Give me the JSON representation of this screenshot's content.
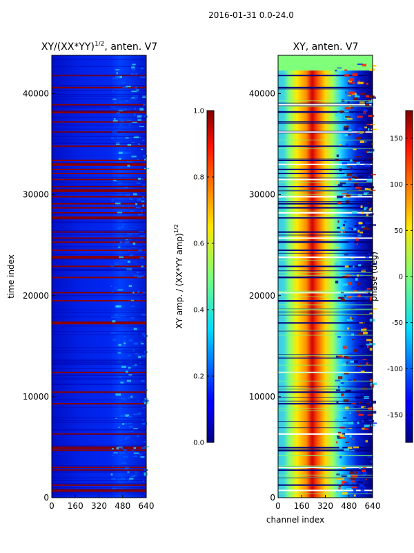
{
  "suptitle": "2016-01-31 0.0-24.0",
  "chart_data": [
    {
      "type": "heatmap",
      "title_base": "XY/(XX*YY)",
      "title_sup": "1/2",
      "title_tail": ", anten. V7",
      "xlabel": "",
      "ylabel": "time index",
      "xlim": [
        0,
        640
      ],
      "ylim": [
        0,
        43800
      ],
      "xticks": [
        "0",
        "160",
        "320",
        "480",
        "640"
      ],
      "yticks": [
        "0",
        "10000",
        "20000",
        "30000",
        "40000"
      ],
      "colorbar": {
        "label_base": "XY amp. / (XX*YY amp)",
        "label_sup": "1/2",
        "range": [
          0.0,
          1.0
        ],
        "ticks": [
          "0.0",
          "0.2",
          "0.4",
          "0.6",
          "0.8",
          "1.0"
        ],
        "colormap": "jet"
      },
      "flagged_rows_time_index": [
        720,
        1250,
        2730,
        3000,
        4700,
        4950,
        6300,
        9300,
        10450,
        12400,
        17300,
        19500,
        20300,
        21800,
        22900,
        23800,
        24500,
        25300,
        25700,
        26300,
        27700,
        28200,
        28700,
        29100,
        29800,
        30400,
        30800,
        31500,
        32100,
        32500,
        33000,
        33400,
        34800,
        36200,
        37200,
        38200,
        38900,
        40600,
        41800
      ]
    },
    {
      "type": "heatmap",
      "title": "XY, anten. V7",
      "xlabel": "channel index",
      "ylabel": "",
      "xlim": [
        0,
        640
      ],
      "ylim": [
        0,
        43800
      ],
      "xticks": [
        "0",
        "160",
        "320",
        "480",
        "640"
      ],
      "yticks": [
        "0",
        "10000",
        "20000",
        "30000",
        "40000"
      ],
      "colorbar": {
        "label": "phase (deg)",
        "range": [
          -180,
          180
        ],
        "ticks": [
          "-150",
          "-100",
          "-50",
          "0",
          "50",
          "100",
          "150"
        ],
        "colormap": "jet"
      }
    }
  ]
}
